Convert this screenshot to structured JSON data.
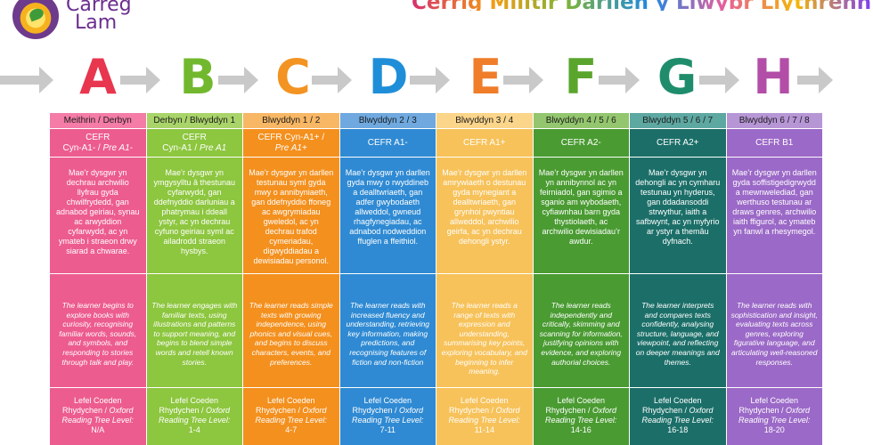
{
  "brand": {
    "line1": "Carreg",
    "line2": "Lam"
  },
  "title": "Cerrig Milltir Darllen y Llwybr Llythrennedd",
  "letters": [
    {
      "letter": "A",
      "color": "#e8364f"
    },
    {
      "letter": "B",
      "color": "#72b82e"
    },
    {
      "letter": "C",
      "color": "#f39322"
    },
    {
      "letter": "D",
      "color": "#1f8ed8"
    },
    {
      "letter": "E",
      "color": "#ef7d2a"
    },
    {
      "letter": "F",
      "color": "#5aa52c"
    },
    {
      "letter": "G",
      "color": "#1f8d6b"
    },
    {
      "letter": "H",
      "color": "#b24ea7"
    }
  ],
  "columns": [
    {
      "year": "Meithrin / Derbyn",
      "cefr_main": "CEFR",
      "cefr_rest": "Cyn-A1- / ",
      "cefr_italic": "Pre A1-",
      "welsh": "Mae’r dysgwr yn dechrau archwilio llyfrau gyda chwilfrydedd, gan adnabod geiriau, synau ac arwyddion cyfarwydd, ac yn ymateb i straeon drwy siarad a chwarae.",
      "english": "The learner begins to explore books with curiosity, recognising familiar words, sounds, and symbols, and responding to stories through talk and play.",
      "level_line1": "Lefel Coeden",
      "level_line2_a": "Rhydychen / ",
      "level_line2_b": "Oxford",
      "level_line3": "Reading Tree Level:",
      "level_value": "N/A"
    },
    {
      "year": "Derbyn / Blwyddyn 1",
      "cefr_main": "CEFR",
      "cefr_rest": "Cyn-A1 / ",
      "cefr_italic": "Pre A1",
      "welsh": "Mae’r dysgwr yn ymgysylltu â thestunau cyfarwydd, gan ddefnyddio darluniau a phatrymau i ddeall ystyr, ac yn dechrau cyfuno geiriau syml ac ailadrodd straeon hysbys.",
      "english": "The learner engages with familiar texts, using illustrations and patterns to support meaning, and begins to blend simple words and retell known stories.",
      "level_line1": "Lefel Coeden",
      "level_line2_a": "Rhydychen / ",
      "level_line2_b": "Oxford",
      "level_line3": "Reading Tree Level:",
      "level_value": "1-4"
    },
    {
      "year": "Blwyddyn 1 / 2",
      "cefr_main": "CEFR Cyn-A1+ / ",
      "cefr_rest": "",
      "cefr_italic": "Pre A1+",
      "welsh": "Mae’r dysgwr yn darllen testunau syml gyda mwy o annibyniaeth, gan ddefnyddio ffoneg ac awgrymiadau gweledol, ac yn dechrau trafod cymeriadau, digwyddiadau a dewisiadau personol.",
      "english": "The learner reads simple texts with growing independence, using phonics and visual cues, and begins to discuss characters, events, and preferences.",
      "level_line1": "Lefel Coeden",
      "level_line2_a": "Rhydychen / ",
      "level_line2_b": "Oxford",
      "level_line3": "Reading Tree Level:",
      "level_value": "4-7"
    },
    {
      "year": "Blwyddyn 2 / 3",
      "cefr_main": "CEFR A1-",
      "cefr_rest": "",
      "cefr_italic": "",
      "welsh": "Mae’r dysgwr yn darllen gyda mwy o rwyddineb a dealltwriaeth, gan adfer gwybodaeth allweddol, gwneud rhagfynegiadau, ac adnabod nodweddion ffuglen a ffeithiol.",
      "english": "The learner reads with increased fluency and understanding, retrieving key information, making predictions, and recognising features of fiction and non-fiction",
      "level_line1": "Lefel Coeden",
      "level_line2_a": "Rhydychen / ",
      "level_line2_b": "Oxford",
      "level_line3": "Reading Tree Level:",
      "level_value": "7-11"
    },
    {
      "year": "Blwyddyn 3 / 4",
      "cefr_main": "CEFR A1+",
      "cefr_rest": "",
      "cefr_italic": "",
      "welsh": "Mae’r dysgwr yn darllen amrywiaeth o destunau gyda mynegiant a dealltwriaeth, gan grynhoi pwyntiau allweddol, archwilio geirfa, ac yn dechrau dehongli ystyr.",
      "english": "The learner reads a range of texts with expression and understanding, summarising key points, exploring vocabulary, and beginning to infer meaning.",
      "level_line1": "Lefel Coeden",
      "level_line2_a": "Rhydychen / ",
      "level_line2_b": "Oxford",
      "level_line3": "Reading Tree Level:",
      "level_value": "11-14"
    },
    {
      "year": "Blwyddyn 4 / 5 / 6",
      "cefr_main": "CEFR A2-",
      "cefr_rest": "",
      "cefr_italic": "",
      "welsh": "Mae’r dysgwr yn darllen yn annibynnol ac yn feirniadol, gan sgimio a sganio am wybodaeth, cyfiawnhau barn gyda thystiolaeth, ac archwilio dewisiadau’r awdur.",
      "english": "The learner reads independently and critically, skimming and scanning for information, justifying opinions with evidence, and exploring authorial choices.",
      "level_line1": "Lefel Coeden",
      "level_line2_a": "Rhydychen / ",
      "level_line2_b": "Oxford",
      "level_line3": "Reading Tree Level:",
      "level_value": "14-16"
    },
    {
      "year": "Blwyddyn 5 / 6 / 7",
      "cefr_main": "CEFR A2+",
      "cefr_rest": "",
      "cefr_italic": "",
      "welsh": "Mae’r dysgwr yn dehongli ac yn cymharu testunau yn hyderus, gan ddadansoddi strwythur, iaith a safbwynt, ac yn myfyrio ar ystyr a themâu dyfnach.",
      "english": "The learner interprets and compares texts confidently, analysing structure, language, and viewpoint, and reflecting on deeper meanings and themes.",
      "level_line1": "Lefel Coeden",
      "level_line2_a": "Rhydychen / ",
      "level_line2_b": "Oxford",
      "level_line3": "Reading Tree Level:",
      "level_value": "16-18"
    },
    {
      "year": "Blwyddyn 6 / 7 / 8",
      "cefr_main": "CEFR B1",
      "cefr_rest": "",
      "cefr_italic": "",
      "welsh": "Mae’r dysgwr yn darllen gyda soffistigedigrwydd a mewnwelediad, gan werthuso testunau ar draws genres, archwilio iaith ffigurol, ac ymateb yn fanwl a rhesymegol.",
      "english": "The learner reads with sophistication and insight, evaluating texts across genres, exploring figurative language, and articulating well-reasoned responses.",
      "level_line1": "Lefel Coeden",
      "level_line2_a": "Rhydychen / ",
      "level_line2_b": "Oxford",
      "level_line3": "Reading Tree Level:",
      "level_value": "18-20"
    }
  ]
}
